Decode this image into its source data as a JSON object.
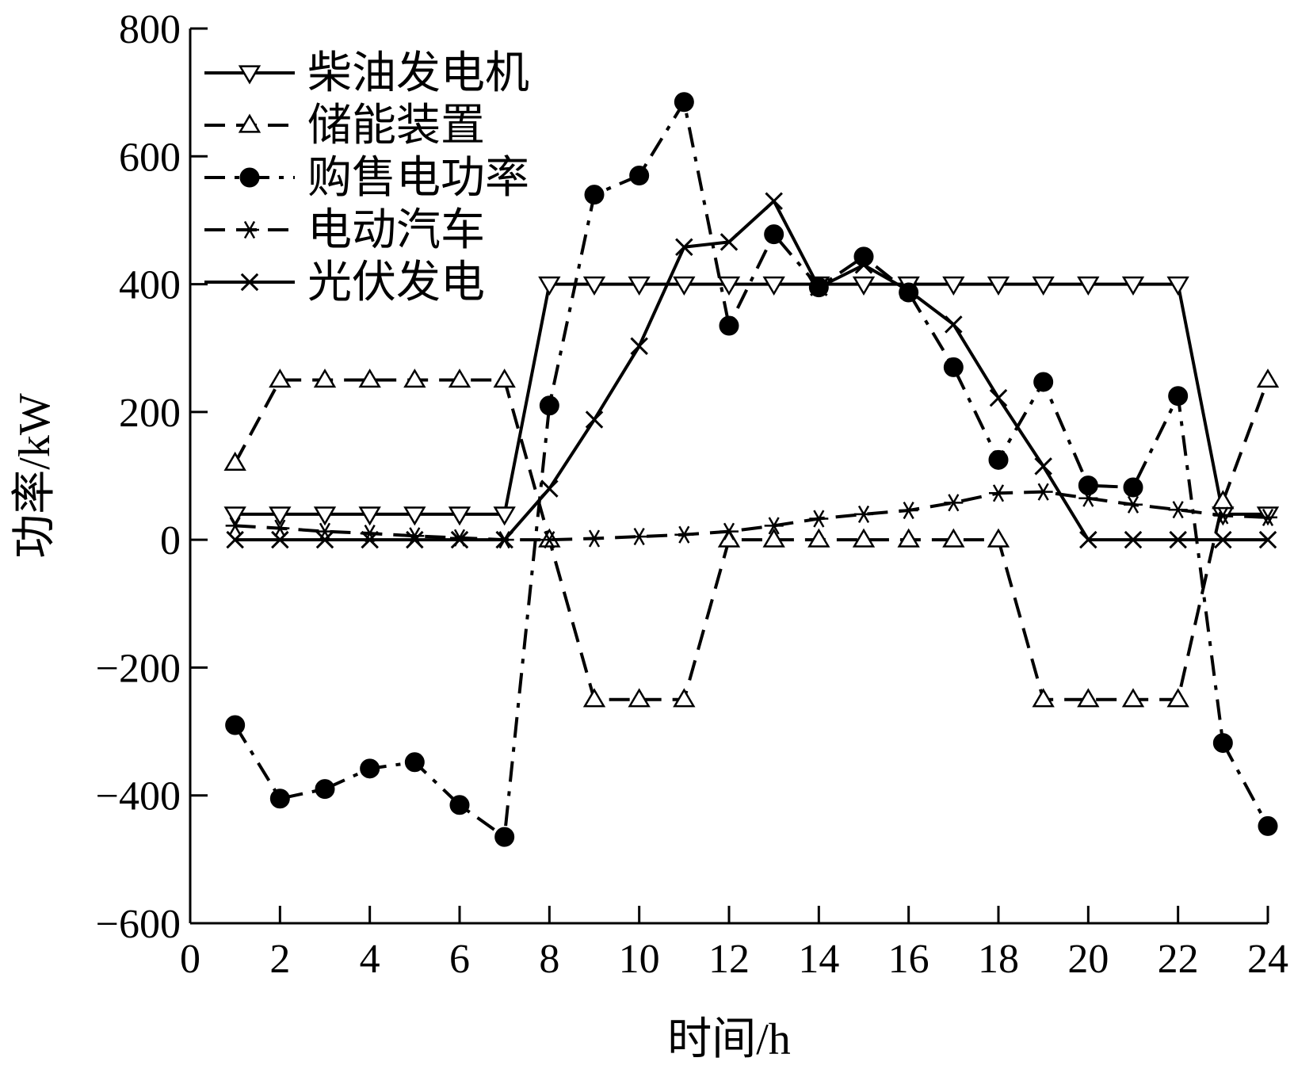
{
  "chart_data": {
    "type": "line",
    "xlabel": "时间/h",
    "ylabel": "功率/kW",
    "xlim": [
      0,
      24
    ],
    "ylim": [
      -600,
      800
    ],
    "xticks": [
      0,
      2,
      4,
      6,
      8,
      10,
      12,
      14,
      16,
      18,
      20,
      22,
      24
    ],
    "yticks": [
      -600,
      -400,
      -200,
      0,
      200,
      400,
      600,
      800
    ],
    "xtick_labels": [
      "0",
      "2",
      "4",
      "6",
      "8",
      "10",
      "12",
      "14",
      "16",
      "18",
      "20",
      "22",
      "24"
    ],
    "ytick_labels": [
      "−600",
      "−400",
      "−200",
      "0",
      "200",
      "400",
      "600",
      "800"
    ],
    "grid": false,
    "legend_position": "top-left",
    "x": [
      1,
      2,
      3,
      4,
      5,
      6,
      7,
      8,
      9,
      10,
      11,
      12,
      13,
      14,
      15,
      16,
      17,
      18,
      19,
      20,
      21,
      22,
      23,
      24
    ],
    "series": [
      {
        "name": "柴油发电机",
        "line_style": "solid",
        "marker": "triangle-down",
        "values": [
          40,
          40,
          40,
          40,
          40,
          40,
          40,
          400,
          400,
          400,
          400,
          400,
          400,
          400,
          400,
          400,
          400,
          400,
          400,
          400,
          400,
          400,
          40,
          40
        ]
      },
      {
        "name": "储能装置",
        "line_style": "dashed",
        "marker": "triangle-up",
        "values": [
          120,
          250,
          250,
          250,
          250,
          250,
          250,
          0,
          -250,
          -250,
          -250,
          0,
          0,
          0,
          0,
          0,
          0,
          0,
          -250,
          -250,
          -250,
          -250,
          60,
          250
        ]
      },
      {
        "name": "购售电功率",
        "line_style": "dash-dot",
        "marker": "circle-filled",
        "values": [
          -290,
          -405,
          -390,
          -358,
          -348,
          -415,
          -465,
          210,
          540,
          570,
          685,
          335,
          478,
          395,
          443,
          387,
          270,
          125,
          247,
          85,
          82,
          225,
          -318,
          -448
        ]
      },
      {
        "name": "电动汽车",
        "line_style": "dashed",
        "marker": "asterisk",
        "values": [
          22,
          18,
          13,
          10,
          6,
          3,
          0,
          0,
          2,
          5,
          8,
          13,
          22,
          33,
          40,
          46,
          58,
          73,
          75,
          65,
          55,
          47,
          38,
          35
        ]
      },
      {
        "name": "光伏发电",
        "line_style": "solid",
        "marker": "x",
        "values": [
          0,
          0,
          0,
          0,
          0,
          0,
          0,
          80,
          188,
          303,
          458,
          466,
          530,
          395,
          430,
          390,
          337,
          222,
          115,
          0,
          0,
          0,
          0,
          0
        ]
      }
    ]
  }
}
